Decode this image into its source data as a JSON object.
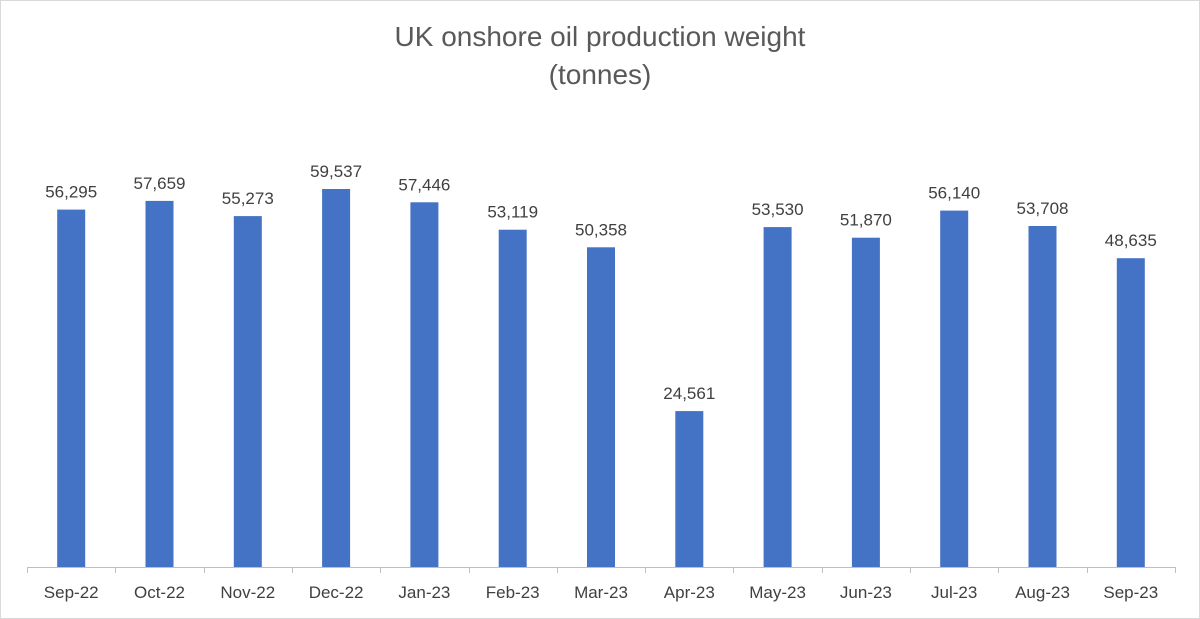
{
  "chart_data": {
    "type": "bar",
    "title_line1": "UK onshore oil production weight",
    "title_line2": "(tonnes)",
    "xlabel": "",
    "ylabel": "",
    "categories": [
      "Sep-22",
      "Oct-22",
      "Nov-22",
      "Dec-22",
      "Jan-23",
      "Feb-23",
      "Mar-23",
      "Apr-23",
      "May-23",
      "Jun-23",
      "Jul-23",
      "Aug-23",
      "Sep-23"
    ],
    "values": [
      56295,
      57659,
      55273,
      59537,
      57446,
      53119,
      50358,
      24561,
      53530,
      51870,
      56140,
      53708,
      48635
    ],
    "data_labels": [
      "56,295",
      "57,659",
      "55,273",
      "59,537",
      "57,446",
      "53,119",
      "50,358",
      "24,561",
      "53,530",
      "51,870",
      "56,140",
      "53,708",
      "48,635"
    ],
    "ylim": [
      0,
      60000
    ],
    "grid": false,
    "legend": "none",
    "bar_color": "#4472c4"
  }
}
